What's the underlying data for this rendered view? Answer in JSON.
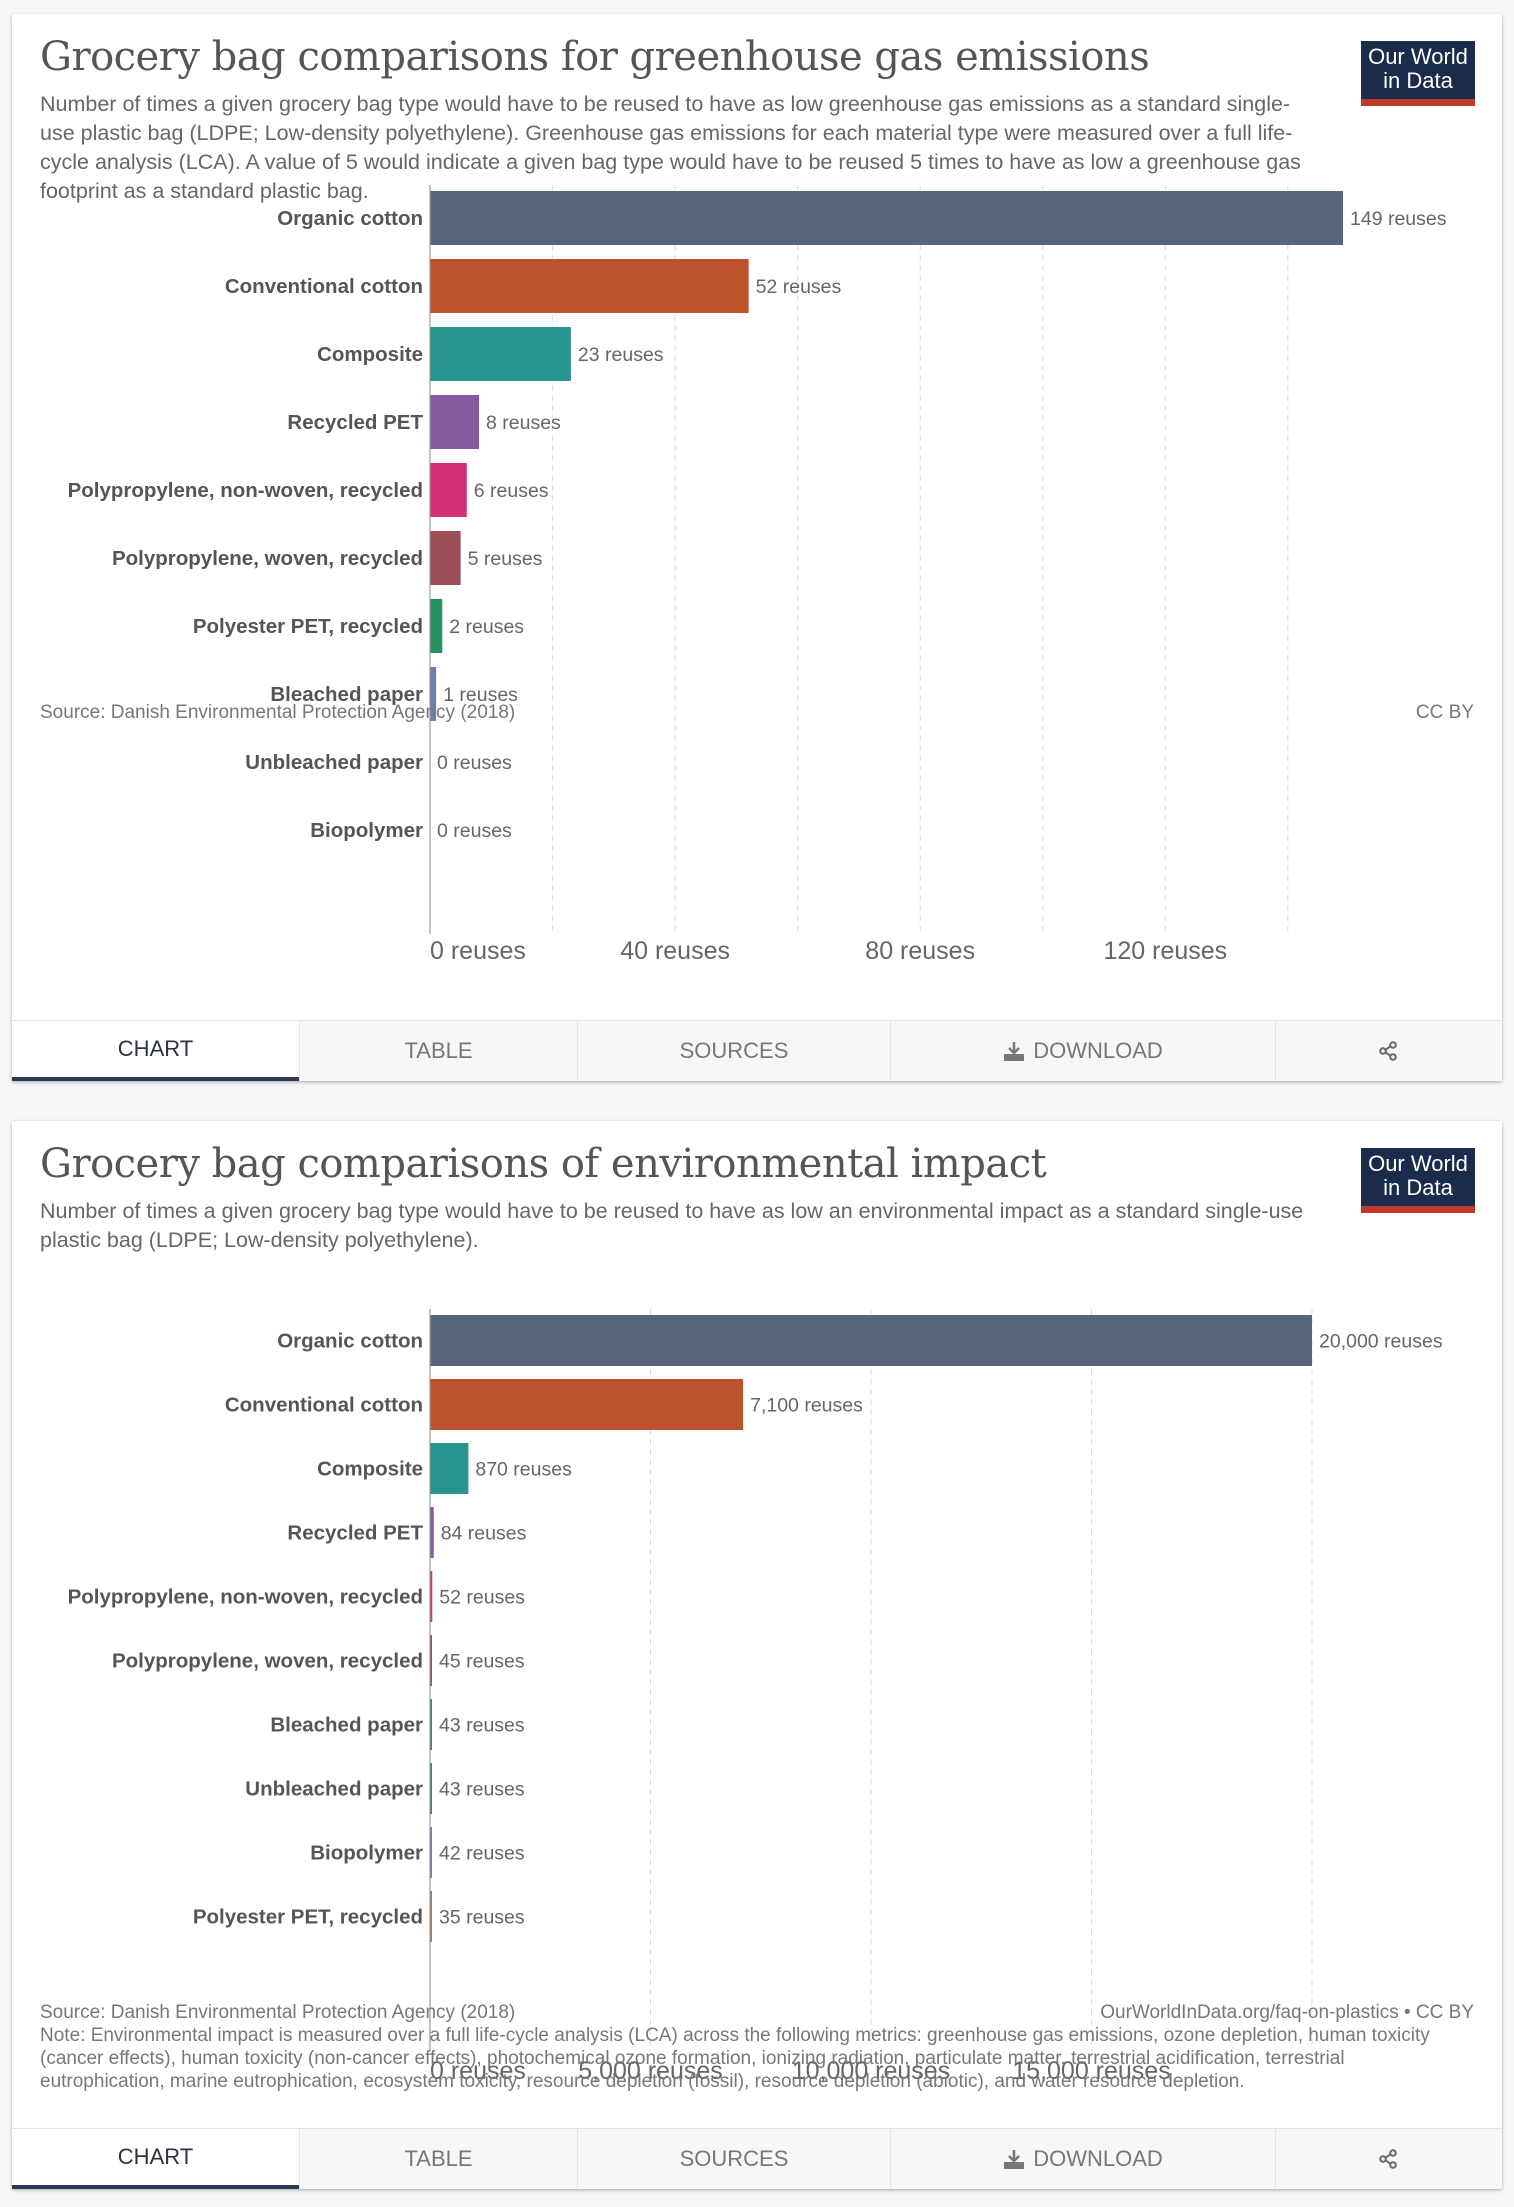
{
  "logo": {
    "line1": "Our World",
    "line2": "in Data"
  },
  "tabs": {
    "chart": "CHART",
    "table": "TABLE",
    "sources": "SOURCES",
    "download": "DOWNLOAD",
    "download_icon": "download-icon",
    "share_icon": "share-icon",
    "active": "chart"
  },
  "colors": {
    "logo_bg": "#1a2b4c",
    "logo_accent": "#c0392b",
    "active_tab_underline": "#2d3a55"
  },
  "chart1_meta": {
    "source": "Source: Danish Environmental Protection Agency (2018)",
    "license": "CC BY"
  },
  "chart2_meta": {
    "source": "Source: Danish Environmental Protection Agency (2018)",
    "license": "OurWorldInData.org/faq-on-plastics • CC BY",
    "note": "Note: Environmental impact is measured over a full life-cycle analysis (LCA) across the following metrics: greenhouse gas emissions, ozone depletion, human toxicity (cancer effects), human toxicity (non-cancer effects), photochemical ozone formation, ionizing radiation, particulate matter, terrestrial acidification, terrestrial eutrophication, marine eutrophication, ecosystem toxicity, resource depletion (fossil), resource depletion (abiotic), and water resource depletion."
  },
  "chart_data": [
    {
      "type": "bar",
      "orientation": "horizontal",
      "title": "Grocery bag comparisons for greenhouse gas emissions",
      "subtitle": "Number of times a given grocery bag type would have to be reused to have as low greenhouse gas emissions as a standard single-use plastic bag (LDPE; Low-density polyethylene). Greenhouse gas emissions for each material type were measured over a full life-cycle analysis (LCA). A value of 5 would indicate a given bag type would have to be reused 5 times to have as low a greenhouse gas footprint as a standard plastic bag.",
      "categories": [
        "Organic cotton",
        "Conventional cotton",
        "Composite",
        "Recycled PET",
        "Polypropylene, non-woven, recycled",
        "Polypropylene, woven, recycled",
        "Polyester PET, recycled",
        "Bleached paper",
        "Unbleached paper",
        "Biopolymer"
      ],
      "values": [
        149,
        52,
        23,
        8,
        6,
        5,
        2,
        1,
        0,
        0
      ],
      "value_labels": [
        "149 reuses",
        "52 reuses",
        "23 reuses",
        "8 reuses",
        "6 reuses",
        "5 reuses",
        "2 reuses",
        "1 reuses",
        "0 reuses",
        "0 reuses"
      ],
      "colors": [
        "#58667d",
        "#bc532c",
        "#25958d",
        "#8459a0",
        "#d52f78",
        "#9c4e56",
        "#23925d",
        "#6a80b0",
        "#8c8c8c",
        "#8c8c8c"
      ],
      "unit": "reuses",
      "xlim": [
        0,
        149
      ],
      "gridlines": [
        0,
        20,
        40,
        60,
        80,
        100,
        120,
        140
      ],
      "xticks": [
        0,
        40,
        80,
        120
      ],
      "xtick_labels": [
        "0 reuses",
        "40 reuses",
        "80 reuses",
        "120 reuses"
      ],
      "grid": true,
      "legend": "none"
    },
    {
      "type": "bar",
      "orientation": "horizontal",
      "title": "Grocery bag comparisons of environmental impact",
      "subtitle": "Number of times a given grocery bag type would have to be reused to have as low an environmental impact as a standard single-use plastic bag (LDPE; Low-density polyethylene).",
      "categories": [
        "Organic cotton",
        "Conventional cotton",
        "Composite",
        "Recycled PET",
        "Polypropylene, non-woven, recycled",
        "Polypropylene, woven, recycled",
        "Bleached paper",
        "Unbleached paper",
        "Biopolymer",
        "Polyester PET, recycled"
      ],
      "values": [
        20000,
        7100,
        870,
        84,
        52,
        45,
        43,
        43,
        42,
        35
      ],
      "value_labels": [
        "20,000 reuses",
        "7,100 reuses",
        "870 reuses",
        "84 reuses",
        "52 reuses",
        "45 reuses",
        "43 reuses",
        "43 reuses",
        "42 reuses",
        "35 reuses"
      ],
      "colors": [
        "#58667d",
        "#bc532c",
        "#25958d",
        "#8459a0",
        "#d52f78",
        "#9c4e56",
        "#23925d",
        "#23925d",
        "#6a80b0",
        "#a37b5a"
      ],
      "unit": "reuses",
      "xlim": [
        0,
        20000
      ],
      "gridlines": [
        0,
        5000,
        10000,
        15000,
        20000
      ],
      "xticks": [
        0,
        5000,
        10000,
        15000
      ],
      "xtick_labels": [
        "0 reuses",
        "5,000 reuses",
        "10,000 reuses",
        "15,000 reuses"
      ],
      "grid": true,
      "legend": "none"
    }
  ]
}
